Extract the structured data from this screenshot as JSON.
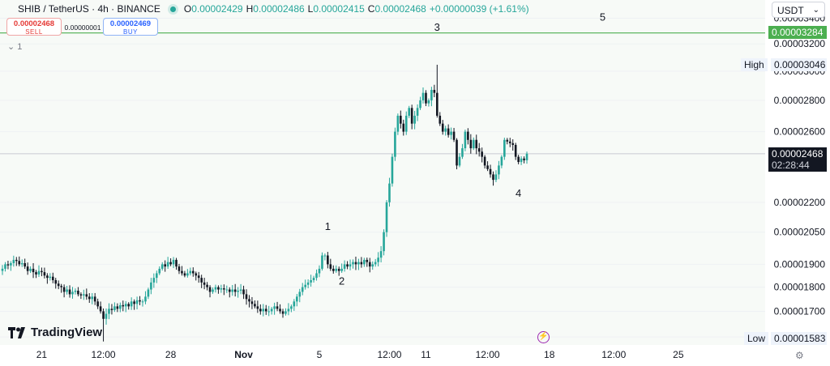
{
  "header": {
    "symbol": "SHIB / TetherUS · 4h · BINANCE",
    "o_label": "O",
    "o_val": "0.00002429",
    "h_label": "H",
    "h_val": "0.00002486",
    "l_label": "L",
    "l_val": "0.00002415",
    "c_label": "C",
    "c_val": "0.00002468",
    "change": "+0.00000039 (+1.61%)"
  },
  "trade": {
    "sell_price": "0.00002468",
    "sell_label": "SELL",
    "spread": "0.00000001",
    "buy_price": "0.00002469",
    "buy_label": "BUY"
  },
  "indicator_collapse": "1",
  "currency": "USDT",
  "price_tags": {
    "level_line": "0.00003284",
    "high_label": "High",
    "high": "0.00003046",
    "last": "0.00002468",
    "countdown": "02:28:44",
    "low_label": "Low",
    "low": "0.00001583"
  },
  "brand": "TradingView",
  "colors": {
    "up": "#26a69a",
    "down": "#131722",
    "level": "#4caf50",
    "accent": "#2962ff"
  },
  "chart_data": {
    "type": "candlestick",
    "title": "SHIB / TetherUS · 4h · BINANCE",
    "x_ticks": [
      "21",
      "12:00",
      "28",
      "Nov",
      "5",
      "12:00",
      "11",
      "12:00",
      "18",
      "12:00",
      "25"
    ],
    "y_ticks": [
      "0.00003400",
      "0.00003200",
      "0.00003000",
      "0.00002800",
      "0.00002600",
      "0.00002200",
      "0.00002050",
      "0.00001900",
      "0.00001800",
      "0.00001700",
      "0.00001600"
    ],
    "y_scale": "log",
    "ylim": [
      1.57e-05,
      3.55e-05
    ],
    "level_line": 3.284e-05,
    "last_price": 2.468e-05,
    "high": 3.046e-05,
    "low": 1.583e-05,
    "wave_labels": [
      {
        "label": "1",
        "x_index": 116,
        "price": 2.06e-05
      },
      {
        "label": "2",
        "x_index": 121,
        "price": 1.81e-05
      },
      {
        "label": "3",
        "x_index": 155,
        "price": 3.3e-05
      },
      {
        "label": "4",
        "x_index": 184,
        "price": 2.23e-05
      },
      {
        "label": "5",
        "x_index": 214,
        "price": 3.38e-05
      }
    ],
    "closes": [
      1.88e-05,
      1.9e-05,
      1.895e-05,
      1.905e-05,
      1.92e-05,
      1.915e-05,
      1.9e-05,
      1.905e-05,
      1.89e-05,
      1.87e-05,
      1.88e-05,
      1.865e-05,
      1.855e-05,
      1.87e-05,
      1.865e-05,
      1.85e-05,
      1.84e-05,
      1.845e-05,
      1.83e-05,
      1.815e-05,
      1.805e-05,
      1.8e-05,
      1.78e-05,
      1.79e-05,
      1.77e-05,
      1.78e-05,
      1.785e-05,
      1.77e-05,
      1.765e-05,
      1.77e-05,
      1.76e-05,
      1.75e-05,
      1.76e-05,
      1.74e-05,
      1.72e-05,
      1.7e-05,
      1.67e-05,
      1.69e-05,
      1.71e-05,
      1.705e-05,
      1.72e-05,
      1.71e-05,
      1.725e-05,
      1.72e-05,
      1.73e-05,
      1.72e-05,
      1.74e-05,
      1.73e-05,
      1.745e-05,
      1.74e-05,
      1.74e-05,
      1.76e-05,
      1.79e-05,
      1.82e-05,
      1.84e-05,
      1.86e-05,
      1.88e-05,
      1.9e-05,
      1.89e-05,
      1.91e-05,
      1.9e-05,
      1.92e-05,
      1.89e-05,
      1.87e-05,
      1.86e-05,
      1.85e-05,
      1.86e-05,
      1.87e-05,
      1.86e-05,
      1.85e-05,
      1.84e-05,
      1.82e-05,
      1.81e-05,
      1.8e-05,
      1.78e-05,
      1.79e-05,
      1.8e-05,
      1.79e-05,
      1.795e-05,
      1.79e-05,
      1.79e-05,
      1.78e-05,
      1.79e-05,
      1.78e-05,
      1.785e-05,
      1.79e-05,
      1.77e-05,
      1.75e-05,
      1.74e-05,
      1.73e-05,
      1.72e-05,
      1.71e-05,
      1.7e-05,
      1.71e-05,
      1.7e-05,
      1.7e-05,
      1.71e-05,
      1.72e-05,
      1.71e-05,
      1.7e-05,
      1.69e-05,
      1.7e-05,
      1.71e-05,
      1.72e-05,
      1.74e-05,
      1.76e-05,
      1.78e-05,
      1.8e-05,
      1.81e-05,
      1.82e-05,
      1.83e-05,
      1.84e-05,
      1.86e-05,
      1.88e-05,
      1.94e-05,
      1.94e-05,
      1.9e-05,
      1.88e-05,
      1.87e-05,
      1.88e-05,
      1.87e-05,
      1.88e-05,
      1.9e-05,
      1.89e-05,
      1.9e-05,
      1.91e-05,
      1.9e-05,
      1.91e-05,
      1.9e-05,
      1.92e-05,
      1.91e-05,
      1.89e-05,
      1.9e-05,
      1.91e-05,
      1.93e-05,
      1.96e-05,
      2.05e-05,
      2.2e-05,
      2.3e-05,
      2.45e-05,
      2.6e-05,
      2.7e-05,
      2.65e-05,
      2.6e-05,
      2.7e-05,
      2.75e-05,
      2.65e-05,
      2.7e-05,
      2.75e-05,
      2.8e-05,
      2.85e-05,
      2.78e-05,
      2.8e-05,
      2.87e-05,
      2.85e-05,
      2.7e-05,
      2.65e-05,
      2.6e-05,
      2.62e-05,
      2.58e-05,
      2.6e-05,
      2.55e-05,
      2.4e-05,
      2.45e-05,
      2.5e-05,
      2.6e-05,
      2.55e-05,
      2.5e-05,
      2.55e-05,
      2.5e-05,
      2.48e-05,
      2.45e-05,
      2.4e-05,
      2.38e-05,
      2.35e-05,
      2.32e-05,
      2.35e-05,
      2.4e-05,
      2.45e-05,
      2.55e-05,
      2.54e-05,
      2.53e-05,
      2.52e-05,
      2.45e-05,
      2.42e-05,
      2.44e-05,
      2.43e-05,
      2.468e-05
    ]
  }
}
